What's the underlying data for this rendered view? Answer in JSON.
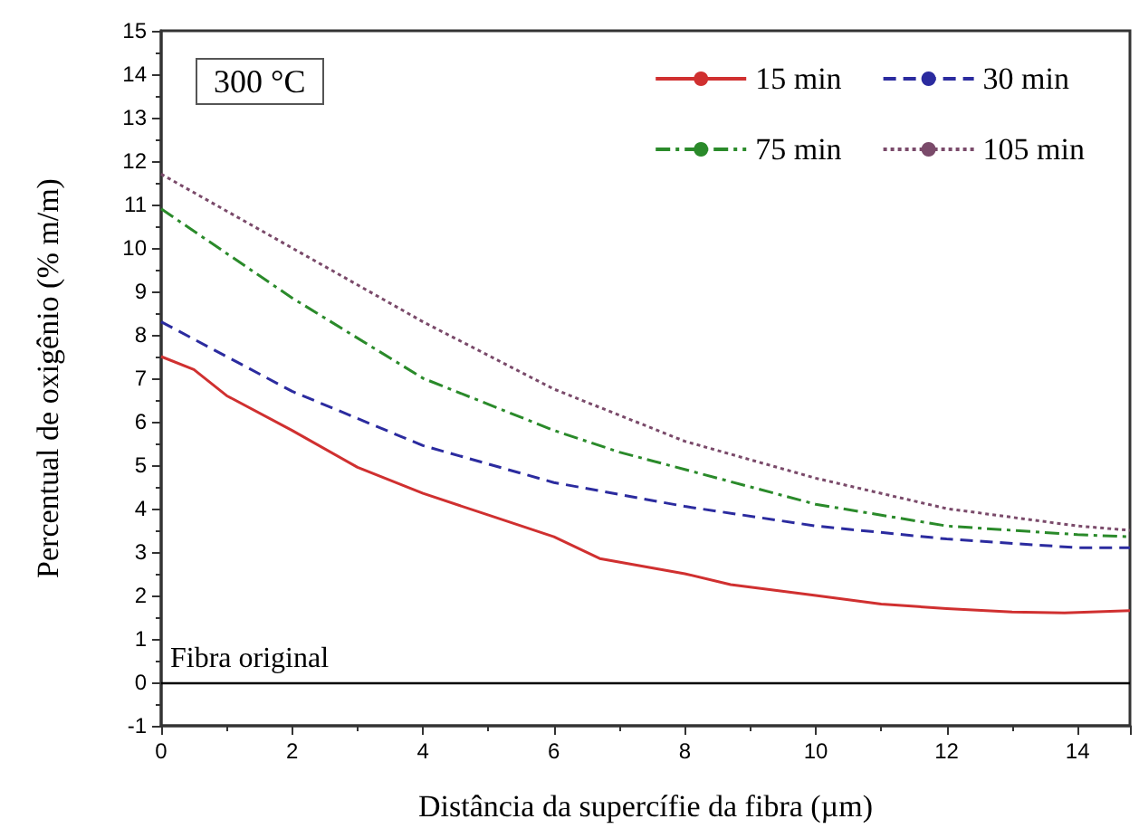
{
  "chart_data": {
    "type": "line",
    "xlabel": "Distância da supercífie da fibra (µm)",
    "ylabel": "Percentual de oxigênio (% m/m)",
    "annotations": [
      "300 °C"
    ],
    "xlim": [
      0,
      14.8
    ],
    "xticks": [
      0,
      2,
      4,
      6,
      8,
      10,
      12,
      14
    ],
    "ylim": [
      -1,
      15
    ],
    "yticks": [
      -1,
      0,
      1,
      2,
      3,
      4,
      5,
      6,
      7,
      8,
      9,
      10,
      11,
      12,
      13,
      14,
      15
    ],
    "grid": false,
    "legend": "top right",
    "marker": "none",
    "ref_lines": [
      {
        "axis": "y",
        "value": 0,
        "label": "Fibra original",
        "color": "#000000"
      }
    ],
    "series": [
      {
        "name": "15 min",
        "color": "#d03030",
        "line_style": "solid",
        "x": [
          0,
          0.5,
          1,
          2,
          3,
          4,
          5,
          6,
          6.7,
          8,
          8.7,
          10,
          11,
          12,
          13,
          13.8,
          14.8
        ],
        "values": [
          7.5,
          7.2,
          6.6,
          5.8,
          4.95,
          4.35,
          3.85,
          3.35,
          2.85,
          2.5,
          2.25,
          2.0,
          1.8,
          1.7,
          1.62,
          1.6,
          1.65
        ]
      },
      {
        "name": "30 min",
        "color": "#2b2b9f",
        "line_style": "dashed",
        "x": [
          0,
          2,
          4,
          6,
          8,
          10,
          12,
          14,
          14.8
        ],
        "values": [
          8.3,
          6.7,
          5.45,
          4.6,
          4.05,
          3.6,
          3.3,
          3.1,
          3.1
        ]
      },
      {
        "name": "75 min",
        "color": "#2a8a2a",
        "line_style": "dashdot",
        "x": [
          0,
          2,
          4,
          6,
          7,
          8,
          10,
          12,
          14,
          14.8
        ],
        "values": [
          10.9,
          8.85,
          7.0,
          5.8,
          5.3,
          4.9,
          4.1,
          3.6,
          3.4,
          3.35
        ]
      },
      {
        "name": "105 min",
        "color": "#7a4a6a",
        "line_style": "dotted",
        "x": [
          0,
          2,
          4,
          6,
          8,
          10,
          12,
          14,
          14.8
        ],
        "values": [
          11.7,
          10.0,
          8.3,
          6.75,
          5.55,
          4.7,
          4.0,
          3.6,
          3.5
        ]
      }
    ]
  }
}
